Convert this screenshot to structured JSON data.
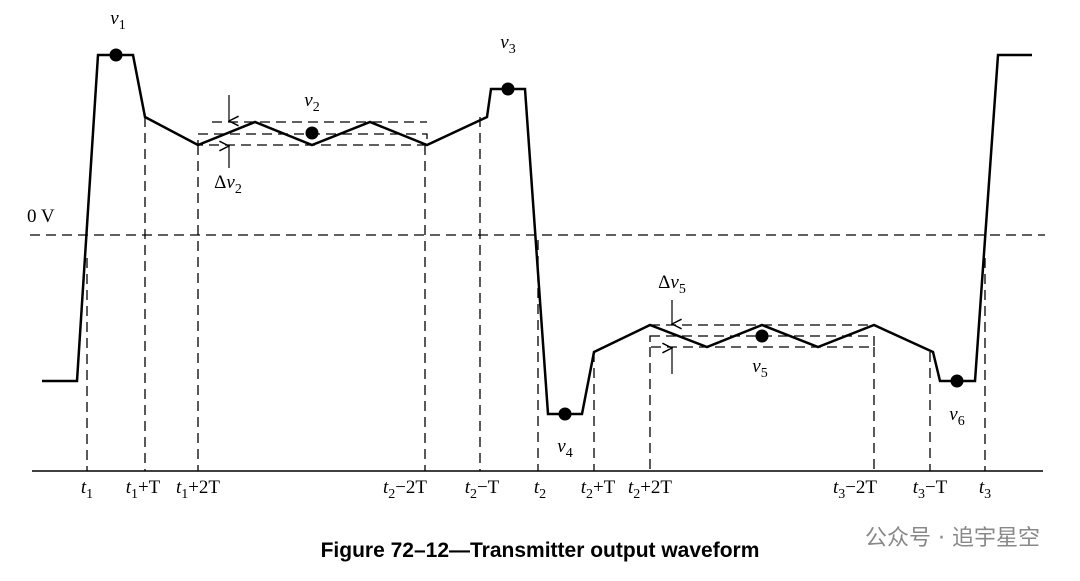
{
  "labels": {
    "v1": {
      "base": "v",
      "sub": "1"
    },
    "v2": {
      "base": "v",
      "sub": "2"
    },
    "v3": {
      "base": "v",
      "sub": "3"
    },
    "v4": {
      "base": "v",
      "sub": "4"
    },
    "v5": {
      "base": "v",
      "sub": "5"
    },
    "v6": {
      "base": "v",
      "sub": "6"
    },
    "dv2": {
      "prefix": "Δ",
      "base": "v",
      "sub": "2"
    },
    "dv5": {
      "prefix": "Δ",
      "base": "v",
      "sub": "5"
    },
    "zero": "0 V"
  },
  "time_axis": [
    {
      "base": "t",
      "sub": "1"
    },
    {
      "base": "t",
      "sub": "1",
      "suffix": "+T"
    },
    {
      "base": "t",
      "sub": "1",
      "suffix": "+2T"
    },
    {
      "base": "t",
      "sub": "2",
      "suffix": "−2T"
    },
    {
      "base": "t",
      "sub": "2",
      "suffix": "−T"
    },
    {
      "base": "t",
      "sub": "2"
    },
    {
      "base": "t",
      "sub": "2",
      "suffix": "+T"
    },
    {
      "base": "t",
      "sub": "2",
      "suffix": "+2T"
    },
    {
      "base": "t",
      "sub": "3",
      "suffix": "−2T"
    },
    {
      "base": "t",
      "sub": "3",
      "suffix": "−T"
    },
    {
      "base": "t",
      "sub": "3"
    }
  ],
  "caption": "Figure 72–12—Transmitter output waveform",
  "watermark": "公众号 · 追宇星空"
}
